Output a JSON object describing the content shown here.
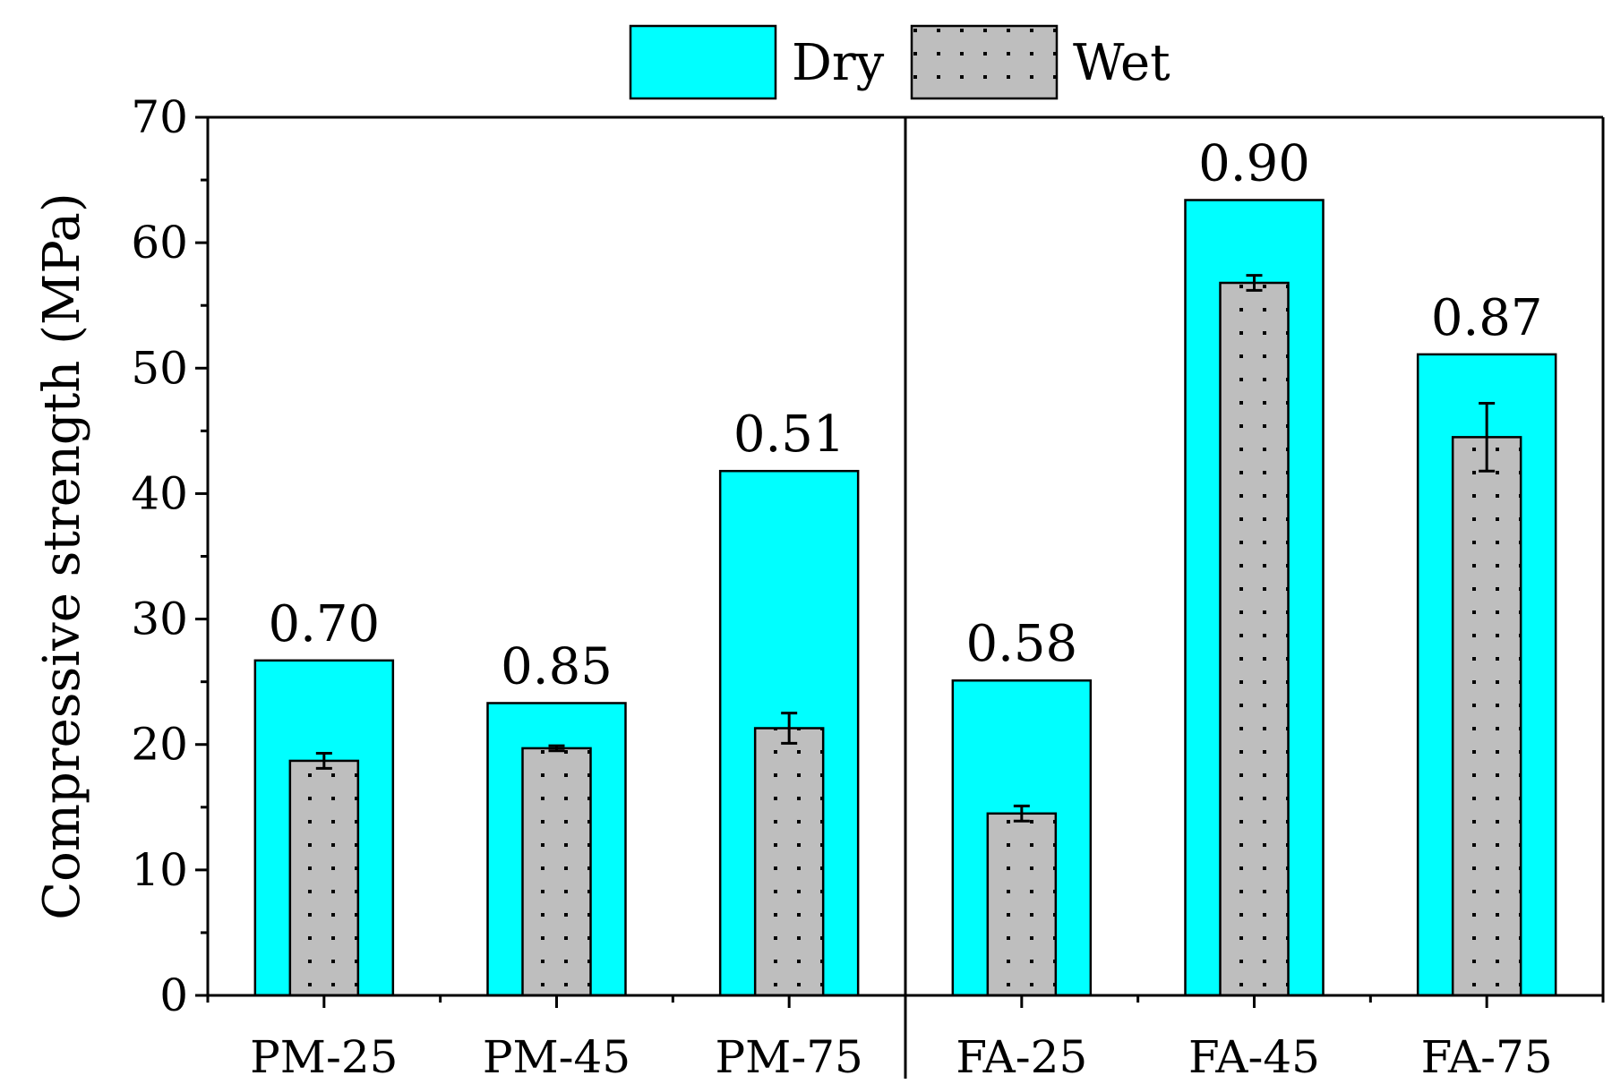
{
  "chart_data": {
    "type": "bar",
    "ylabel": "Compressive strength (MPa)",
    "xlabel": "",
    "ylim": [
      0,
      70
    ],
    "yticks": [
      0,
      10,
      20,
      30,
      40,
      50,
      60,
      70
    ],
    "categories": [
      "PM-25",
      "PM-45",
      "PM-75",
      "FA-25",
      "FA-45",
      "FA-75"
    ],
    "series": [
      {
        "name": "Dry",
        "values": [
          26.7,
          23.3,
          41.8,
          25.1,
          63.4,
          51.1
        ],
        "color": "#00FFFF"
      },
      {
        "name": "Wet",
        "values": [
          18.7,
          19.7,
          21.3,
          14.5,
          56.8,
          44.5
        ],
        "errors": [
          0.6,
          0.2,
          1.2,
          0.6,
          0.6,
          2.7
        ],
        "color": "#BEBEBE",
        "pattern": "dots"
      }
    ],
    "annotations": [
      "0.70",
      "0.85",
      "0.51",
      "0.58",
      "0.90",
      "0.87"
    ],
    "group_divider_after_category": "PM-75",
    "legend": {
      "position": "top-center",
      "items": [
        "Dry",
        "Wet"
      ]
    },
    "grid": false
  }
}
